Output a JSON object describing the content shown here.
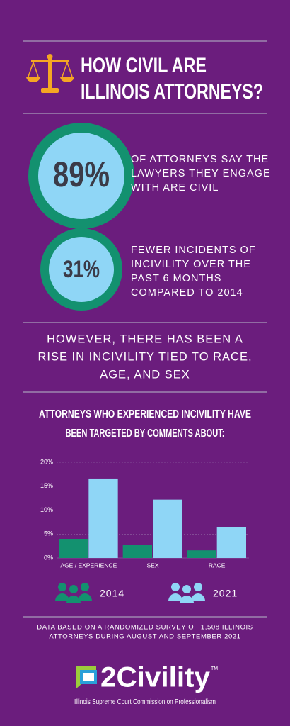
{
  "header": {
    "title_lines": [
      "HOW CIVIL ARE",
      "ILLINOIS ATTORNEYS?"
    ]
  },
  "stats": [
    {
      "figure": "89%",
      "text_lines": [
        "OF ATTORNEYS SAY THE",
        "LAWYERS THEY ENGAGE",
        "WITH ARE CIVIL"
      ]
    },
    {
      "figure": "31%",
      "text_lines": [
        "FEWER INCIDENTS OF",
        "INCIVILITY OVER THE",
        "PAST 6 MONTHS",
        "COMPARED TO 2014"
      ]
    }
  ],
  "highlight_lines": [
    "HOWEVER, THERE HAS BEEN A",
    "RISE IN INCIVILITY TIED TO RACE,",
    "AGE, AND SEX"
  ],
  "chart_data": {
    "type": "bar",
    "title_lines": [
      "ATTORNEYS WHO EXPERIENCED INCIVILITY HAVE",
      "BEEN TARGETED BY COMMENTS ABOUT:"
    ],
    "categories": [
      "AGE / EXPERIENCE",
      "SEX",
      "RACE"
    ],
    "series": [
      {
        "name": "2014",
        "color": "#13916f",
        "values": [
          4,
          2.8,
          1.6
        ]
      },
      {
        "name": "2021",
        "color": "#8fd6f6",
        "values": [
          16.6,
          12.2,
          6.5
        ]
      }
    ],
    "ylim": [
      0,
      20
    ],
    "yticks": [
      {
        "value": 0,
        "label": "0%"
      },
      {
        "value": 5,
        "label": "5%"
      },
      {
        "value": 10,
        "label": "10%"
      },
      {
        "value": 15,
        "label": "15%"
      },
      {
        "value": 20,
        "label": "20%"
      }
    ],
    "grid": true
  },
  "footer": {
    "note_lines": [
      "DATA BASED ON A RANDOMIZED SURVEY OF 1,508 ILLINOIS",
      "ATTORNEYS DURING AUGUST AND SEPTEMBER 2021"
    ],
    "logo": "2Civility",
    "trademark": "TM",
    "organization": "Illinois Supreme Court Commission on Professionalism"
  }
}
